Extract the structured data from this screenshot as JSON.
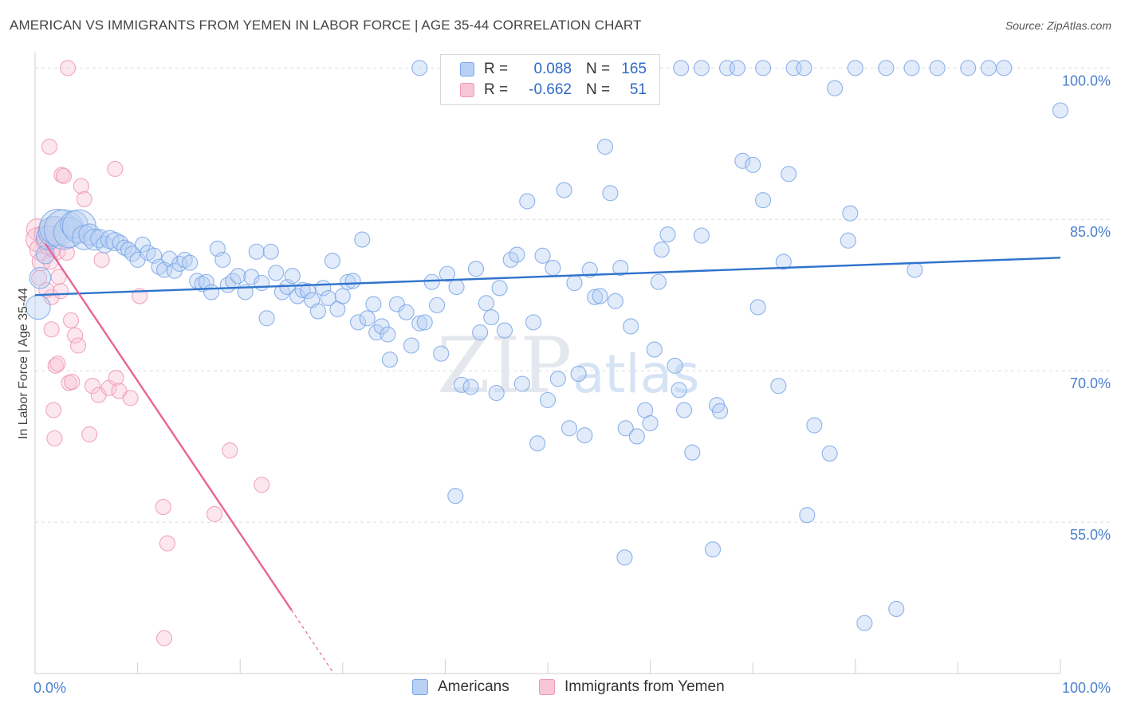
{
  "title": "AMERICAN VS IMMIGRANTS FROM YEMEN IN LABOR FORCE | AGE 35-44 CORRELATION CHART",
  "source": "Source: ZipAtlas.com",
  "watermark": {
    "zip": "ZIP",
    "atlas": "atlas"
  },
  "colors": {
    "blue": "#7aa6e6",
    "blue_fill": "#b8d0f4",
    "blue_line": "#2f73cc",
    "pink": "#ee97b4",
    "pink_fill": "#f9c6d6",
    "pink_line": "#e8649a",
    "axis_label": "#4a7fd0",
    "grid": "#dcdcdc"
  },
  "legend": {
    "series1": {
      "r_label": "R =",
      "r_value": "0.088",
      "n_label": "N =",
      "n_value": "165"
    },
    "series2": {
      "r_label": "R =",
      "r_value": "-0.662",
      "n_label": "N =",
      "n_value": "51"
    }
  },
  "bottom_legend": {
    "americans": "Americans",
    "yemen": "Immigrants from Yemen"
  },
  "chart_data": {
    "type": "scatter",
    "title": "AMERICAN VS IMMIGRANTS FROM YEMEN IN LABOR FORCE | AGE 35-44 CORRELATION CHART",
    "xlabel": "",
    "ylabel": "In Labor Force | Age 35-44",
    "xlim": [
      0,
      100
    ],
    "ylim": [
      40,
      102
    ],
    "x_tick_labels": {
      "left": "0.0%",
      "right": "100.0%"
    },
    "y_ticks": [
      {
        "value": 100,
        "label": "100.0%"
      },
      {
        "value": 85,
        "label": "85.0%"
      },
      {
        "value": 70,
        "label": "70.0%"
      },
      {
        "value": 55,
        "label": "55.0%"
      }
    ],
    "grid": true,
    "legend_position": "top-center",
    "series": [
      {
        "name": "Americans",
        "r": 0.088,
        "n": 165,
        "trend": {
          "x": [
            0,
            100
          ],
          "y": [
            77.5,
            81.2
          ]
        },
        "points": [
          [
            0.3,
            76.3,
            1.6
          ],
          [
            0.5,
            79.2,
            1.4
          ],
          [
            1.0,
            81.5,
            1.2
          ],
          [
            1.3,
            83.2,
            1.6
          ],
          [
            1.8,
            83.8,
            2.0
          ],
          [
            2.2,
            84.2,
            2.4
          ],
          [
            2.8,
            84.0,
            2.6
          ],
          [
            3.3,
            83.7,
            2.0
          ],
          [
            3.8,
            84.5,
            1.8
          ],
          [
            4.3,
            84.3,
            2.2
          ],
          [
            4.8,
            83.2,
            1.6
          ],
          [
            5.3,
            83.5,
            1.4
          ],
          [
            5.8,
            83.0,
            1.4
          ],
          [
            6.3,
            83.1,
            1.2
          ],
          [
            6.8,
            82.5,
            1.1
          ],
          [
            7.3,
            83.0,
            1.2
          ],
          [
            7.8,
            82.8,
            1.2
          ],
          [
            8.3,
            82.7,
            1.0
          ],
          [
            8.7,
            82.2,
            1.0
          ],
          [
            9.1,
            82.0,
            1.0
          ],
          [
            9.5,
            81.6,
            1.0
          ],
          [
            10.0,
            81.0,
            1.0
          ],
          [
            10.5,
            82.5,
            1.0
          ],
          [
            11.0,
            81.7,
            1.0
          ],
          [
            11.6,
            81.4,
            1.0
          ],
          [
            12.1,
            80.3,
            1.0
          ],
          [
            12.6,
            80.0,
            1.0
          ],
          [
            13.1,
            81.1,
            1.0
          ],
          [
            13.6,
            79.9,
            1.0
          ],
          [
            14.1,
            80.6,
            1.0
          ],
          [
            14.6,
            81.0,
            1.0
          ],
          [
            15.1,
            80.7,
            1.0
          ],
          [
            15.8,
            78.9,
            1.0
          ],
          [
            16.3,
            78.6,
            1.0
          ],
          [
            16.7,
            78.8,
            1.0
          ],
          [
            17.2,
            77.8,
            1.0
          ],
          [
            17.8,
            82.1,
            1.0
          ],
          [
            18.3,
            81.0,
            1.0
          ],
          [
            18.8,
            78.5,
            1.0
          ],
          [
            19.3,
            78.9,
            1.0
          ],
          [
            19.8,
            79.4,
            1.0
          ],
          [
            20.5,
            77.8,
            1.0
          ],
          [
            21.1,
            79.3,
            1.0
          ],
          [
            21.6,
            81.8,
            1.0
          ],
          [
            22.1,
            78.7,
            1.0
          ],
          [
            22.6,
            75.2,
            1.0
          ],
          [
            23.0,
            81.8,
            1.0
          ],
          [
            23.5,
            79.7,
            1.0
          ],
          [
            24.1,
            77.8,
            1.0
          ],
          [
            24.6,
            78.3,
            1.0
          ],
          [
            25.1,
            79.4,
            1.0
          ],
          [
            25.6,
            77.4,
            1.0
          ],
          [
            26.1,
            78.0,
            1.0
          ],
          [
            26.6,
            77.9,
            1.0
          ],
          [
            27.0,
            77.0,
            1.0
          ],
          [
            27.6,
            75.9,
            1.0
          ],
          [
            28.1,
            78.2,
            1.0
          ],
          [
            28.6,
            77.2,
            1.0
          ],
          [
            29.0,
            80.9,
            1.0
          ],
          [
            29.5,
            76.1,
            1.0
          ],
          [
            30.0,
            77.4,
            1.0
          ],
          [
            30.5,
            78.8,
            1.0
          ],
          [
            31.0,
            78.9,
            1.0
          ],
          [
            31.5,
            74.8,
            1.0
          ],
          [
            31.9,
            83.0,
            1.0
          ],
          [
            32.4,
            75.2,
            1.0
          ],
          [
            33.0,
            76.6,
            1.0
          ],
          [
            33.3,
            73.8,
            1.0
          ],
          [
            33.8,
            74.4,
            1.0
          ],
          [
            34.4,
            73.6,
            1.0
          ],
          [
            34.6,
            71.1,
            1.0
          ],
          [
            35.3,
            76.6,
            1.0
          ],
          [
            36.2,
            75.8,
            1.0
          ],
          [
            36.7,
            72.5,
            1.0
          ],
          [
            37.5,
            74.7,
            1.0
          ],
          [
            38.0,
            74.8,
            1.0
          ],
          [
            38.7,
            78.8,
            1.0
          ],
          [
            39.2,
            76.5,
            1.0
          ],
          [
            39.6,
            71.7,
            1.0
          ],
          [
            40.2,
            79.6,
            1.0
          ],
          [
            41.1,
            78.3,
            1.0
          ],
          [
            41.6,
            68.6,
            1.0
          ],
          [
            42.5,
            68.4,
            1.0
          ],
          [
            43.0,
            80.1,
            1.0
          ],
          [
            43.4,
            73.8,
            1.0
          ],
          [
            44.0,
            76.7,
            1.0
          ],
          [
            44.5,
            75.3,
            1.0
          ],
          [
            45.0,
            67.8,
            1.0
          ],
          [
            45.3,
            78.2,
            1.0
          ],
          [
            45.8,
            74.0,
            1.0
          ],
          [
            46.4,
            81.0,
            1.0
          ],
          [
            47.0,
            81.5,
            1.0
          ],
          [
            47.5,
            68.7,
            1.0
          ],
          [
            48.0,
            86.8,
            1.0
          ],
          [
            48.6,
            74.8,
            1.0
          ],
          [
            49.0,
            62.8,
            1.0
          ],
          [
            49.5,
            81.4,
            1.0
          ],
          [
            50.0,
            67.1,
            1.0
          ],
          [
            50.5,
            80.2,
            1.0
          ],
          [
            51.0,
            69.2,
            1.0
          ],
          [
            51.6,
            87.9,
            1.0
          ],
          [
            52.1,
            64.3,
            1.0
          ],
          [
            52.6,
            78.7,
            1.0
          ],
          [
            53.0,
            69.7,
            1.0
          ],
          [
            53.6,
            63.6,
            1.0
          ],
          [
            54.1,
            80.0,
            1.0
          ],
          [
            54.6,
            77.3,
            1.0
          ],
          [
            55.1,
            77.4,
            1.0
          ],
          [
            55.6,
            92.2,
            1.0
          ],
          [
            56.1,
            87.6,
            1.0
          ],
          [
            56.6,
            76.9,
            1.0
          ],
          [
            57.1,
            80.2,
            1.0
          ],
          [
            57.6,
            64.3,
            1.0
          ],
          [
            58.1,
            74.4,
            1.0
          ],
          [
            58.7,
            63.5,
            1.0
          ],
          [
            59.5,
            66.1,
            1.0
          ],
          [
            60.0,
            64.8,
            1.0
          ],
          [
            60.4,
            72.1,
            1.0
          ],
          [
            60.8,
            78.8,
            1.0
          ],
          [
            61.1,
            82.0,
            1.0
          ],
          [
            61.7,
            83.5,
            1.0
          ],
          [
            62.4,
            70.5,
            1.0
          ],
          [
            62.8,
            68.1,
            1.0
          ],
          [
            63.3,
            66.1,
            1.0
          ],
          [
            64.1,
            61.9,
            1.0
          ],
          [
            65.0,
            83.4,
            1.0
          ],
          [
            66.1,
            52.3,
            1.0
          ],
          [
            66.5,
            66.6,
            1.0
          ],
          [
            66.8,
            66.0,
            1.0
          ],
          [
            69.0,
            90.8,
            1.0
          ],
          [
            70.0,
            90.4,
            1.0
          ],
          [
            70.5,
            76.3,
            1.0
          ],
          [
            71.0,
            86.9,
            1.0
          ],
          [
            72.5,
            68.5,
            1.0
          ],
          [
            73.0,
            80.8,
            1.0
          ],
          [
            73.5,
            89.5,
            1.0
          ],
          [
            75.3,
            55.7,
            1.0
          ],
          [
            76.0,
            64.6,
            1.0
          ],
          [
            77.5,
            61.8,
            1.0
          ],
          [
            78.0,
            98.0,
            1.0
          ],
          [
            79.3,
            82.9,
            1.0
          ],
          [
            79.5,
            85.6,
            1.0
          ],
          [
            80.9,
            45.0,
            1.0
          ],
          [
            84.0,
            46.4,
            1.0
          ],
          [
            85.8,
            80.0,
            1.0
          ],
          [
            100.0,
            95.8,
            1.0
          ],
          [
            57.5,
            51.5,
            1.0
          ],
          [
            41.0,
            57.6,
            1.0
          ],
          [
            37.5,
            100.0,
            1.0
          ],
          [
            63.0,
            100.0,
            1.0
          ],
          [
            65.0,
            100.0,
            1.0
          ],
          [
            67.5,
            100.0,
            1.0
          ],
          [
            68.5,
            100.0,
            1.0
          ],
          [
            71.0,
            100.0,
            1.0
          ],
          [
            74.0,
            100.0,
            1.0
          ],
          [
            75.0,
            100.0,
            1.0
          ],
          [
            80.0,
            100.0,
            1.0
          ],
          [
            83.0,
            100.0,
            1.0
          ],
          [
            85.5,
            100.0,
            1.0
          ],
          [
            88.0,
            100.0,
            1.0
          ],
          [
            91.0,
            100.0,
            1.0
          ],
          [
            93.0,
            100.0,
            1.0
          ],
          [
            94.5,
            100.0,
            1.0
          ]
        ]
      },
      {
        "name": "Immigrants from Yemen",
        "r": -0.662,
        "n": 51,
        "trend": {
          "x": [
            1.0,
            25.0
          ],
          "y": [
            82.6,
            46.3
          ],
          "dash_to": [
            29.0,
            40.2
          ]
        },
        "points": [
          [
            0.2,
            84.0,
            1.4
          ],
          [
            0.3,
            83.0,
            1.6
          ],
          [
            0.5,
            82.0,
            1.4
          ],
          [
            0.6,
            80.8,
            1.2
          ],
          [
            0.8,
            83.5,
            1.2
          ],
          [
            1.0,
            82.8,
            1.2
          ],
          [
            1.2,
            82.3,
            1.0
          ],
          [
            1.3,
            83.6,
            1.0
          ],
          [
            1.5,
            80.8,
            1.0
          ],
          [
            1.6,
            77.3,
            1.0
          ],
          [
            1.8,
            82.0,
            1.0
          ],
          [
            2.0,
            84.4,
            1.2
          ],
          [
            2.2,
            81.8,
            1.0
          ],
          [
            2.3,
            79.3,
            1.0
          ],
          [
            2.5,
            77.9,
            1.0
          ],
          [
            1.4,
            92.2,
            1.0
          ],
          [
            1.6,
            74.1,
            1.0
          ],
          [
            1.8,
            66.1,
            1.0
          ],
          [
            1.9,
            63.3,
            1.0
          ],
          [
            2.0,
            70.5,
            1.0
          ],
          [
            2.2,
            70.7,
            1.0
          ],
          [
            2.6,
            89.4,
            1.0
          ],
          [
            2.8,
            89.3,
            1.0
          ],
          [
            3.1,
            81.7,
            1.0
          ],
          [
            3.3,
            68.8,
            1.0
          ],
          [
            3.5,
            75.0,
            1.0
          ],
          [
            3.6,
            68.9,
            1.0
          ],
          [
            3.9,
            73.5,
            1.0
          ],
          [
            4.2,
            72.5,
            1.0
          ],
          [
            4.5,
            88.3,
            1.0
          ],
          [
            4.8,
            87.0,
            1.0
          ],
          [
            5.3,
            63.7,
            1.0
          ],
          [
            5.6,
            68.5,
            1.0
          ],
          [
            6.2,
            67.6,
            1.0
          ],
          [
            6.5,
            81.0,
            1.0
          ],
          [
            7.2,
            68.3,
            1.0
          ],
          [
            7.8,
            90.0,
            1.0
          ],
          [
            7.9,
            69.3,
            1.0
          ],
          [
            8.2,
            68.0,
            1.0
          ],
          [
            9.3,
            67.3,
            1.0
          ],
          [
            10.2,
            77.4,
            1.0
          ],
          [
            12.5,
            56.5,
            1.0
          ],
          [
            12.6,
            43.5,
            1.0
          ],
          [
            12.9,
            52.9,
            1.0
          ],
          [
            17.5,
            55.8,
            1.0
          ],
          [
            19.0,
            62.1,
            1.0
          ],
          [
            22.1,
            58.7,
            1.0
          ],
          [
            3.2,
            100.0,
            1.0
          ],
          [
            0.4,
            79.2,
            1.0
          ],
          [
            1.1,
            78.0,
            1.0
          ],
          [
            2.4,
            83.6,
            1.0
          ]
        ]
      }
    ]
  }
}
